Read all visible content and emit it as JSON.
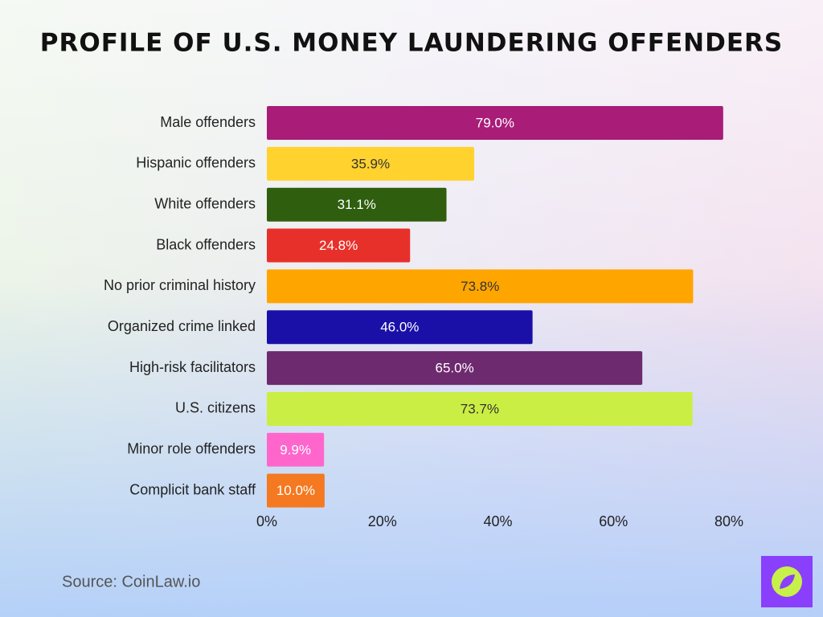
{
  "chart_data": {
    "type": "bar",
    "orientation": "horizontal",
    "title": "Profile of U.S. Money Laundering Offenders",
    "categories": [
      "Male offenders",
      "Hispanic offenders",
      "White offenders",
      "Black offenders",
      "No prior criminal history",
      "Organized crime linked",
      "High-risk facilitators",
      "U.S. citizens",
      "Minor role offenders",
      "Complicit bank staff"
    ],
    "values": [
      79.0,
      35.9,
      31.1,
      24.8,
      73.8,
      46.0,
      65.0,
      73.7,
      9.9,
      10.0
    ],
    "value_labels": [
      "79.0%",
      "35.9%",
      "31.1%",
      "24.8%",
      "73.8%",
      "46.0%",
      "65.0%",
      "73.7%",
      "9.9%",
      "10.0%"
    ],
    "colors": [
      "#a91c78",
      "#ffd22e",
      "#2f5e0f",
      "#e8302a",
      "#ffa500",
      "#1a10a8",
      "#6e2a6e",
      "#cbee44",
      "#ff66cc",
      "#f47920"
    ],
    "xlim": [
      0,
      80
    ],
    "xticks": [
      {
        "value": 0,
        "label": "0%"
      },
      {
        "value": 20,
        "label": "20%"
      },
      {
        "value": 40,
        "label": "40%"
      },
      {
        "value": 60,
        "label": "60%"
      },
      {
        "value": 80,
        "label": "80%"
      }
    ],
    "grid": false,
    "source": "Source: CoinLaw.io"
  }
}
